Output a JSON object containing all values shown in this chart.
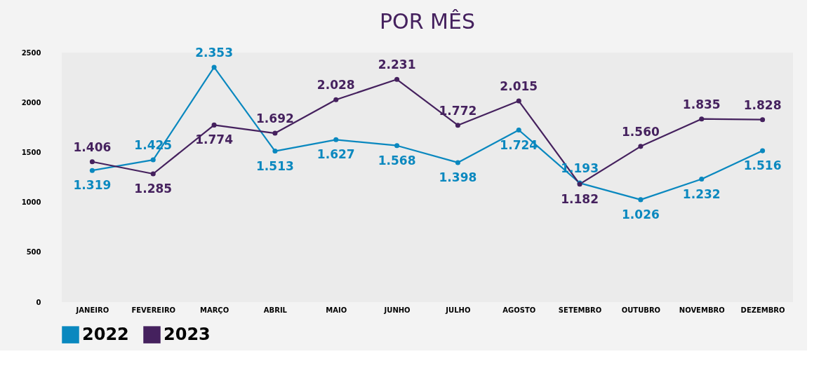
{
  "chart_data": {
    "type": "line",
    "title": "POR MÊS",
    "categories": [
      "JANEIRO",
      "FEVEREIRO",
      "MARÇO",
      "ABRIL",
      "MAIO",
      "JUNHO",
      "JULHO",
      "AGOSTO",
      "SETEMBRO",
      "OUTUBRO",
      "NOVEMBRO",
      "DEZEMBRO"
    ],
    "series": [
      {
        "name": "2022",
        "color": "#0a88bf",
        "values": [
          1319,
          1425,
          2353,
          1513,
          1627,
          1568,
          1398,
          1724,
          1193,
          1026,
          1232,
          1516
        ],
        "value_labels": [
          "1.319",
          "1.425",
          "2.353",
          "1.513",
          "1.627",
          "1.568",
          "1.398",
          "1.724",
          "1.193",
          "1.026",
          "1.232",
          "1.516"
        ]
      },
      {
        "name": "2023",
        "color": "#45215e",
        "values": [
          1406,
          1285,
          1774,
          1692,
          2028,
          2231,
          1772,
          2015,
          1182,
          1560,
          1835,
          1828
        ],
        "value_labels": [
          "1.406",
          "1.285",
          "1.774",
          "1.692",
          "2.028",
          "2.231",
          "1.772",
          "2.015",
          "1.182",
          "1.560",
          "1.835",
          "1.828"
        ]
      }
    ],
    "ylim": [
      0,
      2500
    ],
    "yticks": [
      0,
      500,
      1000,
      1500,
      2000,
      2500
    ],
    "marker": "circle",
    "line_style": "solid",
    "grid": false,
    "legend": "bottom"
  }
}
